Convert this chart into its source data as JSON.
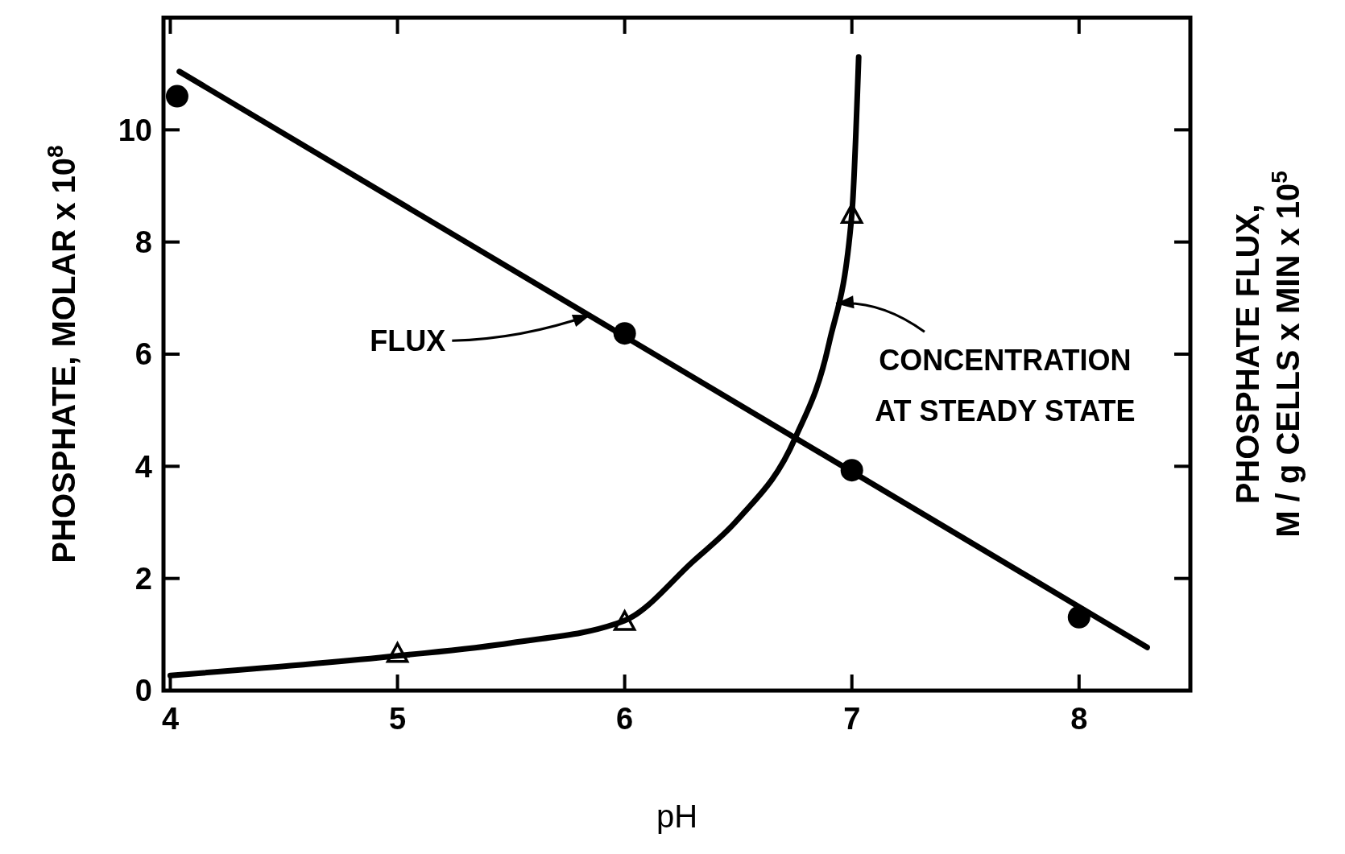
{
  "chart_data": {
    "type": "line",
    "xlabel": "pH",
    "ylabel": "PHOSPHATE, MOLAR x 10$^{8}$",
    "y2label": "PHOSPHATE FLUX,\nM / g CELLS x MIN x 10$^{5}$",
    "xlim": [
      3.97,
      8.49
    ],
    "xticks": [
      4,
      5,
      6,
      7,
      8
    ],
    "ylim": [
      0,
      12
    ],
    "yticks": [
      0,
      2,
      4,
      6,
      8,
      10
    ],
    "grid": false,
    "series": [
      {
        "type": "scatter",
        "marker": "circle",
        "color": "#000000",
        "x": [
          4.03,
          6,
          7,
          8
        ],
        "values": [
          10.6,
          6.37,
          3.93,
          1.31
        ]
      },
      {
        "marker": "none",
        "color": "#000000",
        "x": [
          4.04,
          8.3
        ],
        "values": [
          11.04,
          0.77
        ]
      },
      {
        "type": "scatter",
        "marker": "triangle",
        "color": "#000000",
        "x": [
          5,
          6,
          7
        ],
        "values": [
          0.65,
          1.22,
          8.48
        ]
      },
      {
        "marker": "none",
        "color": "#000000",
        "x": [
          4,
          5,
          5.5,
          6,
          6.3,
          6.5,
          6.75,
          6.9,
          7,
          7.03
        ],
        "values": [
          0.27,
          0.62,
          0.85,
          1.25,
          2.3,
          3.06,
          4.5,
          6.2,
          8.5,
          11.3
        ]
      }
    ],
    "annotations": [
      {
        "text": "FLUX",
        "x": 5.85,
        "y": 6.7
      },
      {
        "text": "CONCENTRATION\nAT STEADY STATE",
        "x": 6.93,
        "y": 6.9
      }
    ]
  }
}
